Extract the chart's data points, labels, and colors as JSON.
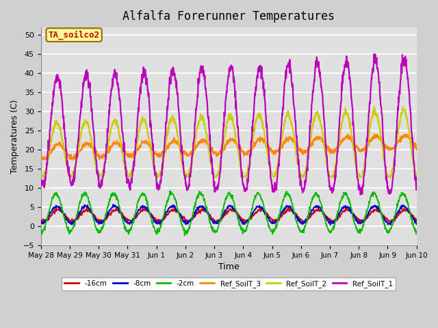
{
  "title": "Alfalfa Forerunner Temperatures",
  "xlabel": "Time",
  "ylabel": "Temperatures (C)",
  "ylim": [
    -5,
    52
  ],
  "yticks": [
    -5,
    0,
    5,
    10,
    15,
    20,
    25,
    30,
    35,
    40,
    45,
    50
  ],
  "plot_bg_color": "#e0e0e0",
  "fig_bg_color": "#d0d0d0",
  "grid_color": "#ffffff",
  "legend": [
    "-16cm",
    "-8cm",
    "-2cm",
    "Ref_SoilT_3",
    "Ref_SoilT_2",
    "Ref_SoilT_1"
  ],
  "legend_colors": [
    "#cc0000",
    "#0000cc",
    "#00bb00",
    "#ff8800",
    "#cccc00",
    "#bb00bb"
  ],
  "annotation_text": "TA_soilco2",
  "annotation_color": "#cc0000",
  "annotation_bg": "#ffff99",
  "annotation_border": "#996600"
}
